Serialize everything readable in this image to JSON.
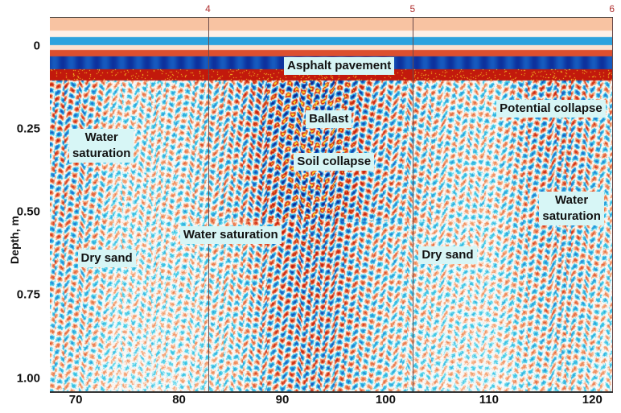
{
  "chart_data": {
    "type": "heatmap",
    "title": "",
    "xlabel": "",
    "ylabel": "Depth, m",
    "xlim": [
      67.5,
      122
    ],
    "ylim": [
      1.04,
      -0.085
    ],
    "x_ticks": [
      "70",
      "80",
      "90",
      "100",
      "110",
      "120"
    ],
    "x_tick_values": [
      70,
      80,
      90,
      100,
      110,
      120
    ],
    "y_ticks": [
      "0",
      "0.25",
      "0.50",
      "0.75",
      "1.00"
    ],
    "y_tick_values": [
      0,
      0.25,
      0.5,
      0.75,
      1.0
    ],
    "colormap": [
      "#0a2a9a",
      "#1a8ad8",
      "#37d0e8",
      "#ffffff",
      "#f5a070",
      "#d22a10",
      "#ffe020"
    ],
    "markers": [
      {
        "label": "4",
        "x": 82.8
      },
      {
        "label": "5",
        "x": 102.6
      },
      {
        "label": "6",
        "x": 121.9
      }
    ],
    "annotations": [
      {
        "text": "Asphalt pavement",
        "x": 95.5,
        "depth": 0.06
      },
      {
        "text": "Water\nsaturation",
        "x": 72.5,
        "depth": 0.3
      },
      {
        "text": "Ballast",
        "x": 94.5,
        "depth": 0.22
      },
      {
        "text": "Potential collapse",
        "x": 116,
        "depth": 0.19
      },
      {
        "text": "Soil collapse",
        "x": 95,
        "depth": 0.35
      },
      {
        "text": "Water\nsaturation",
        "x": 118,
        "depth": 0.49
      },
      {
        "text": "Water saturation",
        "x": 85,
        "depth": 0.57
      },
      {
        "text": "Dry sand",
        "x": 73,
        "depth": 0.64
      },
      {
        "text": "Dry sand",
        "x": 106,
        "depth": 0.63
      }
    ]
  }
}
